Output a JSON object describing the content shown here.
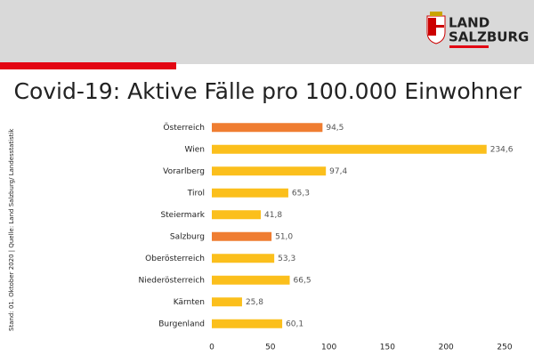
{
  "header": {
    "logo_lines": [
      "LAND",
      "SALZBURG"
    ]
  },
  "chart_data": {
    "type": "bar",
    "orientation": "horizontal",
    "title": "Covid-19: Aktive Fälle pro 100.000 Einwohner",
    "note": "Stand: 01. Oktober 2020 | Quelle: Land Salzburg/ Landesstatistik",
    "categories": [
      "Österreich",
      "Wien",
      "Vorarlberg",
      "Tirol",
      "Steiermark",
      "Salzburg",
      "Oberösterreich",
      "Niederösterreich",
      "Kärnten",
      "Burgenland"
    ],
    "values": [
      94.5,
      234.6,
      97.4,
      65.3,
      41.8,
      51.0,
      53.3,
      66.5,
      25.8,
      60.1
    ],
    "value_labels": [
      "94,5",
      "234,6",
      "97,4",
      "65,3",
      "41,8",
      "51,0",
      "53,3",
      "66,5",
      "25,8",
      "60,1"
    ],
    "colors": [
      "#ef7d31",
      "#fbbf1c",
      "#fbbf1c",
      "#fbbf1c",
      "#fbbf1c",
      "#ef7d31",
      "#fbbf1c",
      "#fbbf1c",
      "#fbbf1c",
      "#fbbf1c"
    ],
    "xlim": [
      0,
      250
    ],
    "xticks": [
      0,
      50,
      100,
      150,
      200,
      250
    ],
    "grid": false
  }
}
